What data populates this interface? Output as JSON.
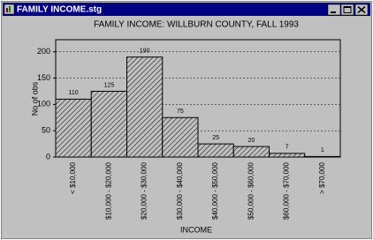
{
  "window": {
    "title": "FAMILY INCOME.stg"
  },
  "chart_data": {
    "type": "bar",
    "title": "FAMILY INCOME:  WILLBURN COUNTY, FALL 1993",
    "x_label": "INCOME",
    "y_label": "No of obs",
    "categories": [
      "< $10,000",
      "$10,000 - $20,000",
      "$20,000 - $30,000",
      "$30,000 - $40,000",
      "$40,000 - $50,000",
      "$50,000 - $60,000",
      "$60,000 - $70,000",
      "> $70,000"
    ],
    "values": [
      110,
      125,
      190,
      75,
      25,
      20,
      7,
      1
    ],
    "ylim": [
      0,
      223
    ],
    "yticks": [
      0,
      50,
      100,
      150,
      200
    ],
    "grid": true,
    "color": "#000000"
  }
}
